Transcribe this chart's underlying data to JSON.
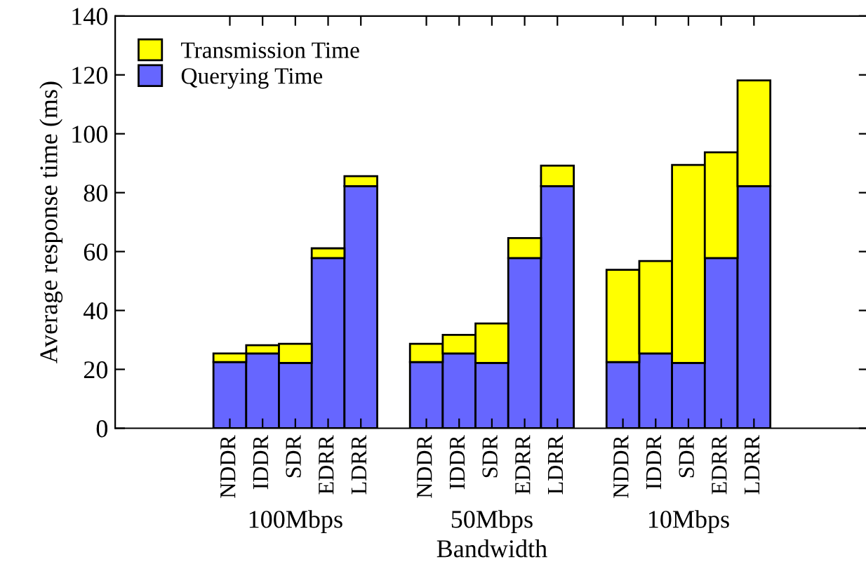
{
  "chart_data": {
    "type": "bar",
    "stacked": true,
    "xlabel": "Bandwidth",
    "ylabel": "Average response time (ms)",
    "categories": [
      null,
      null,
      null,
      "NDDR",
      "IDDR",
      "SDR",
      "EDRR",
      "LDRR",
      null,
      "NDDR",
      "IDDR",
      "SDR",
      "EDRR",
      "LDRR",
      null,
      "NDDR",
      "IDDR",
      "SDR",
      "EDRR",
      "LDRR",
      null,
      null,
      null
    ],
    "series": [
      {
        "name": "Querying Time",
        "color": "#6666ff",
        "values": [
          null,
          null,
          null,
          22.5,
          25.4,
          22.2,
          57.8,
          82.2,
          null,
          22.5,
          25.4,
          22.2,
          57.8,
          82.2,
          null,
          22.5,
          25.4,
          22.2,
          57.8,
          82.2,
          null,
          null,
          null
        ]
      },
      {
        "name": "Transmission Time",
        "color": "#ffff00",
        "values": [
          null,
          null,
          null,
          2.9,
          2.8,
          6.5,
          3.3,
          3.4,
          null,
          6.2,
          6.3,
          13.4,
          6.8,
          7.0,
          null,
          31.3,
          31.4,
          67.2,
          35.9,
          35.9,
          null,
          null,
          null
        ]
      }
    ],
    "annotations": [
      "100Mbps",
      "50Mbps",
      "10Mbps"
    ],
    "ylim": [
      0,
      140
    ],
    "yticks": [
      0,
      20,
      40,
      60,
      80,
      100,
      120,
      140
    ],
    "legend": "top left",
    "grid": false
  }
}
